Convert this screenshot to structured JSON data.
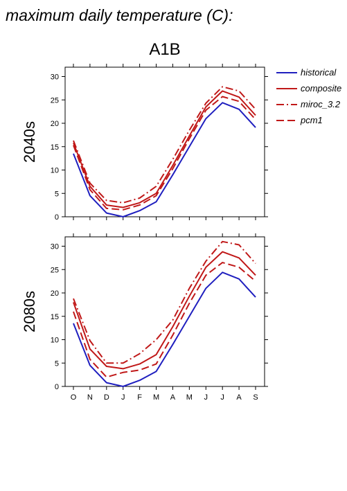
{
  "title": "maximum daily temperature (C):",
  "scenario": "A1B",
  "colors": {
    "historical": "#1f1fbf",
    "future": "#c01818"
  },
  "legend": [
    {
      "name": "historical",
      "style": "solid",
      "color": "#1f1fbf"
    },
    {
      "name": "composite",
      "style": "solid",
      "color": "#c01818"
    },
    {
      "name": "miroc_3.2",
      "style": "dashdot",
      "color": "#c01818"
    },
    {
      "name": "pcm1",
      "style": "dashed",
      "color": "#c01818"
    }
  ],
  "chart_data": [
    {
      "type": "line",
      "title": "A1B",
      "ylabel": "2040s",
      "xlabel": "",
      "categories": [
        "O",
        "N",
        "D",
        "J",
        "F",
        "M",
        "A",
        "M",
        "J",
        "J",
        "A",
        "S"
      ],
      "ylim": [
        0,
        32
      ],
      "yticks": [
        0,
        5,
        10,
        15,
        20,
        25,
        30
      ],
      "series": [
        {
          "name": "historical",
          "style": "solid",
          "color": "#1f1fbf",
          "values": [
            13.5,
            4.5,
            0.8,
            0.0,
            1.3,
            3.2,
            9.0,
            15.0,
            21.0,
            24.4,
            23.0,
            19.1
          ]
        },
        {
          "name": "composite",
          "style": "solid",
          "color": "#c01818",
          "values": [
            15.8,
            6.5,
            2.5,
            2.0,
            3.0,
            5.0,
            11.0,
            17.3,
            23.5,
            26.9,
            25.6,
            21.7
          ]
        },
        {
          "name": "miroc_3.2",
          "style": "dashdot",
          "color": "#c01818",
          "values": [
            16.3,
            7.2,
            3.5,
            3.0,
            4.0,
            6.5,
            12.3,
            18.5,
            24.3,
            27.8,
            26.9,
            23.0
          ]
        },
        {
          "name": "pcm1",
          "style": "dashed",
          "color": "#c01818",
          "values": [
            15.3,
            5.8,
            1.8,
            1.5,
            2.5,
            4.5,
            10.3,
            16.7,
            22.8,
            25.7,
            24.7,
            20.8
          ]
        }
      ]
    },
    {
      "type": "line",
      "title": "",
      "ylabel": "2080s",
      "xlabel": "",
      "categories": [
        "O",
        "N",
        "D",
        "J",
        "F",
        "M",
        "A",
        "M",
        "J",
        "J",
        "A",
        "S"
      ],
      "ylim": [
        0,
        32
      ],
      "yticks": [
        0,
        5,
        10,
        15,
        20,
        25,
        30
      ],
      "series": [
        {
          "name": "historical",
          "style": "solid",
          "color": "#1f1fbf",
          "values": [
            13.5,
            4.5,
            0.8,
            0.0,
            1.3,
            3.2,
            9.0,
            15.0,
            21.0,
            24.4,
            23.0,
            19.1
          ]
        },
        {
          "name": "composite",
          "style": "solid",
          "color": "#c01818",
          "values": [
            18.0,
            8.0,
            4.3,
            3.8,
            4.8,
            6.8,
            12.8,
            19.3,
            25.5,
            28.8,
            27.5,
            23.8
          ]
        },
        {
          "name": "miroc_3.2",
          "style": "dashdot",
          "color": "#c01818",
          "values": [
            18.8,
            9.8,
            5.0,
            5.0,
            7.0,
            10.0,
            14.2,
            21.0,
            26.8,
            31.0,
            30.3,
            26.3
          ]
        },
        {
          "name": "pcm1",
          "style": "dashed",
          "color": "#c01818",
          "values": [
            16.0,
            5.8,
            2.0,
            3.0,
            3.5,
            4.8,
            11.0,
            17.8,
            23.8,
            26.5,
            25.5,
            22.5
          ]
        }
      ]
    }
  ]
}
